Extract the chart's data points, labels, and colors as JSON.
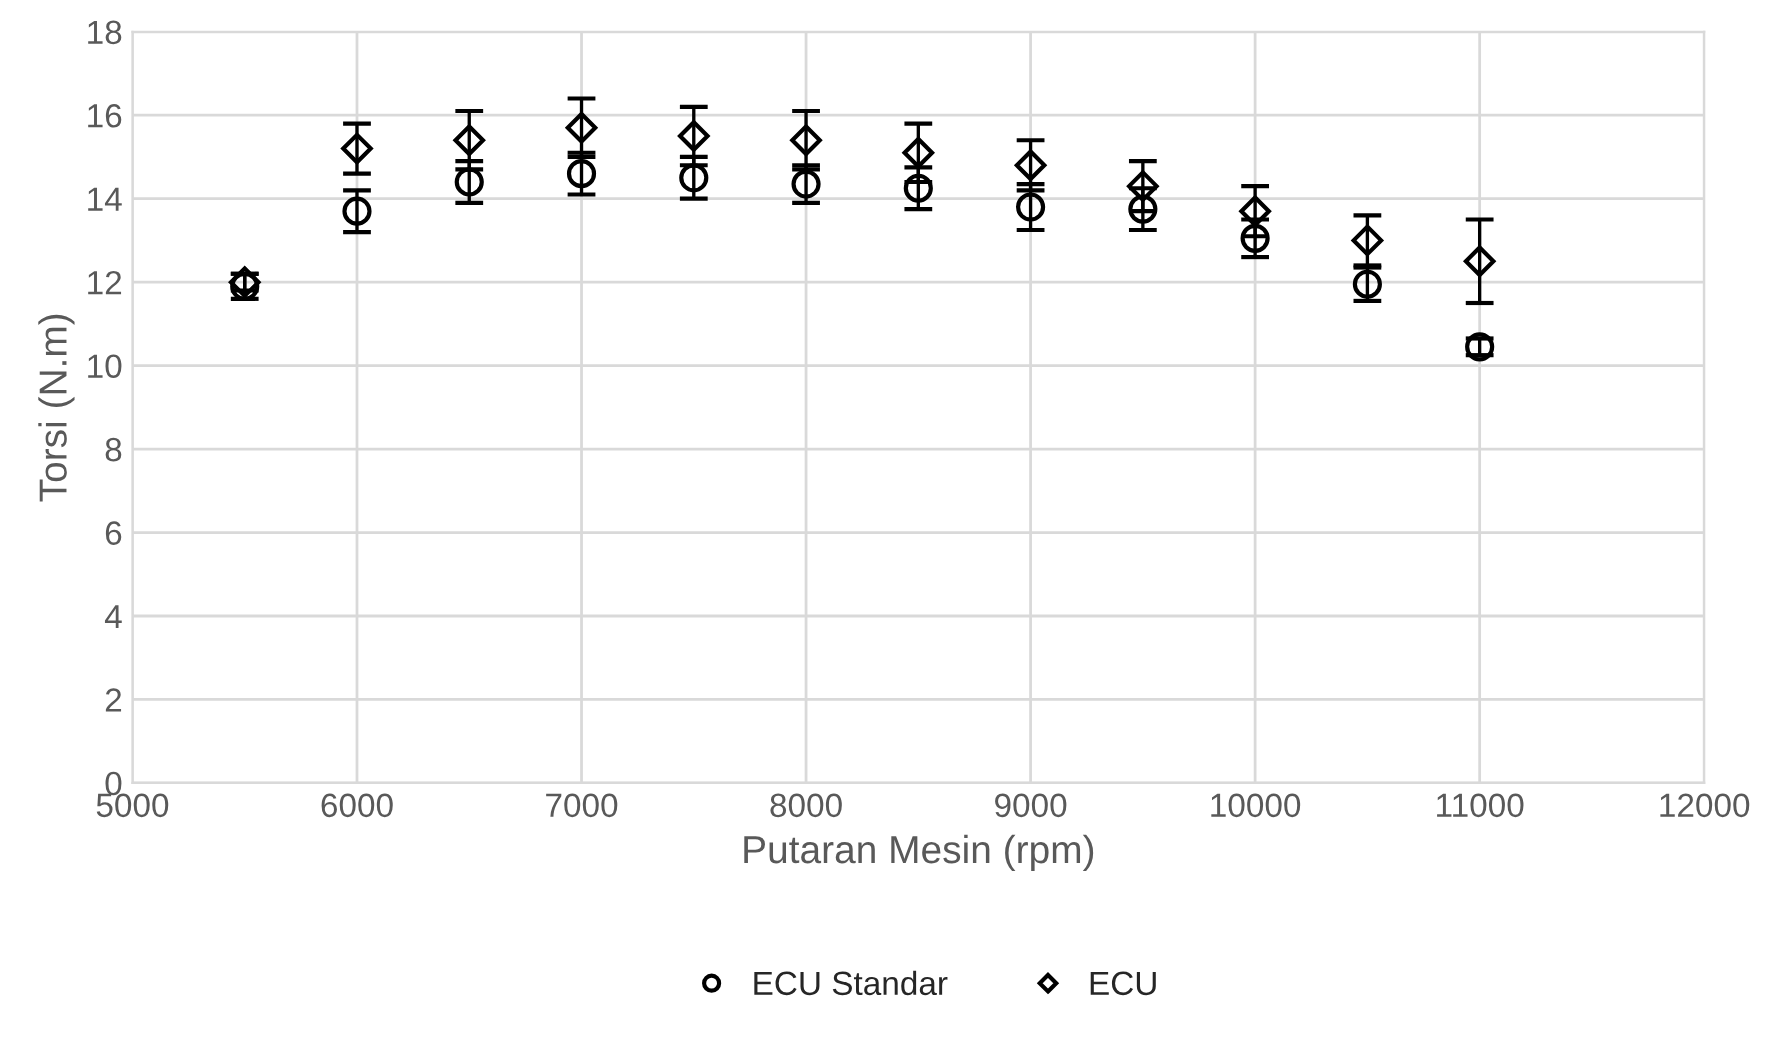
{
  "chart_data": {
    "type": "scatter",
    "xlabel": "Putaran Mesin (rpm)",
    "ylabel": "Torsi (N.m)",
    "x": [
      5500,
      6000,
      6500,
      7000,
      7500,
      8000,
      8500,
      9000,
      9500,
      10000,
      10500,
      11000
    ],
    "series": [
      {
        "name": "ECU Standar",
        "color": "#000000",
        "marker": "circle",
        "values": [
          11.9,
          13.7,
          14.4,
          14.6,
          14.5,
          14.35,
          14.25,
          13.8,
          13.75,
          13.05,
          11.95,
          10.45
        ],
        "errors": [
          0.3,
          0.5,
          0.5,
          0.5,
          0.5,
          0.45,
          0.5,
          0.55,
          0.5,
          0.45,
          0.4,
          0.2
        ]
      },
      {
        "name": "ECU",
        "color": "#000000",
        "marker": "diamond",
        "values": [
          12.0,
          15.2,
          15.4,
          15.7,
          15.5,
          15.4,
          15.1,
          14.8,
          14.3,
          13.7,
          13.0,
          12.5
        ],
        "errors": [
          0.2,
          0.6,
          0.7,
          0.7,
          0.7,
          0.7,
          0.7,
          0.6,
          0.6,
          0.6,
          0.6,
          1.0
        ]
      }
    ],
    "xlim": [
      5000,
      12000
    ],
    "xticks": [
      5000,
      6000,
      7000,
      8000,
      9000,
      10000,
      11000,
      12000
    ],
    "ylim": [
      0,
      18
    ],
    "yticks": [
      0,
      2,
      4,
      6,
      8,
      10,
      12,
      14,
      16,
      18
    ],
    "grid": true,
    "legend": "bottom"
  }
}
